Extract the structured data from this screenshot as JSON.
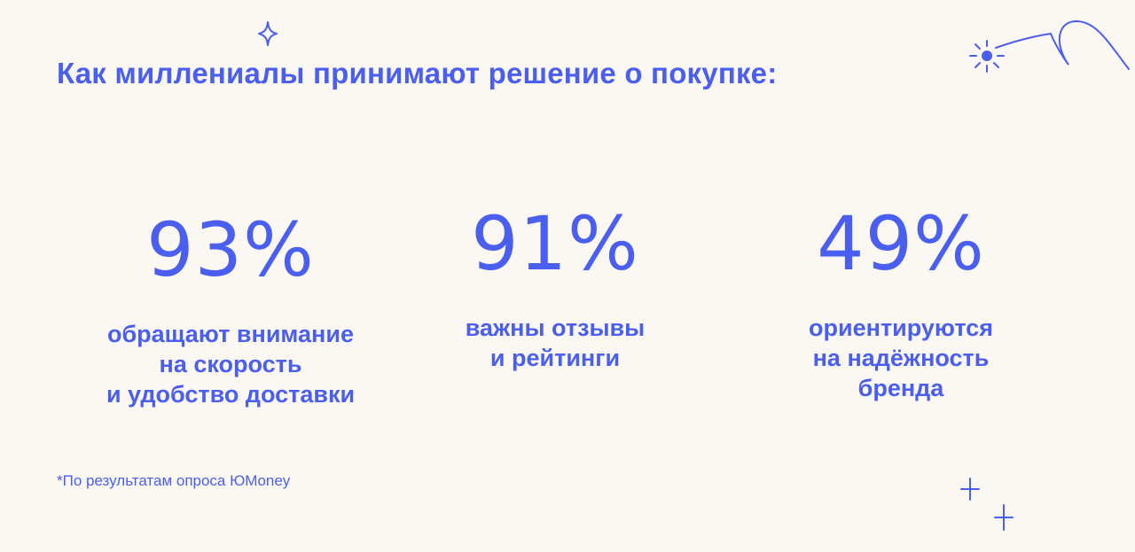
{
  "title": "Как миллениалы принимают решение о покупке:",
  "stats": [
    {
      "value": "93%",
      "description": "обращают внимание\nна скорость\nи удобство доставки"
    },
    {
      "value": "91%",
      "description": "важны отзывы\nи рейтинги"
    },
    {
      "value": "49%",
      "description": "ориентируются\nна надёжность\nбренда"
    }
  ],
  "footnote": "*По результатам опроса ЮMoney",
  "colors": {
    "background": "#fbf8f3",
    "accent": "#4a5ef0"
  },
  "decorations": [
    "sparkle-icon",
    "sun-swirl-icon",
    "plus-sparkle-icon"
  ]
}
